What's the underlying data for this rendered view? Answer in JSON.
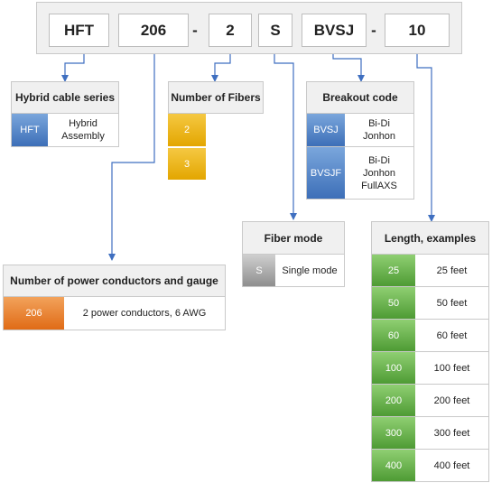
{
  "part_number": {
    "segments": [
      "HFT",
      "206",
      "2",
      "S",
      "BVSJ",
      "10"
    ],
    "dashes": [
      "-",
      "-"
    ]
  },
  "hybrid_series": {
    "title": "Hybrid cable series",
    "rows": [
      {
        "code": "HFT",
        "desc": "Hybrid Assembly"
      }
    ]
  },
  "fibers": {
    "title": "Number of Fibers",
    "rows": [
      {
        "code": "2"
      },
      {
        "code": "3"
      }
    ]
  },
  "breakout": {
    "title": "Breakout code",
    "rows": [
      {
        "code": "BVSJ",
        "desc_lines": [
          "Bi-Di",
          "Jonhon"
        ]
      },
      {
        "code": "BVSJF",
        "desc_lines": [
          "Bi-Di",
          "Jonhon",
          "FullAXS"
        ]
      }
    ]
  },
  "fiber_mode": {
    "title": "Fiber mode",
    "rows": [
      {
        "code": "S",
        "desc": "Single mode"
      }
    ]
  },
  "power": {
    "title": "Number of power conductors and gauge",
    "rows": [
      {
        "code": "206",
        "desc": "2 power conductors, 6 AWG"
      }
    ]
  },
  "length": {
    "title": "Length, examples",
    "rows": [
      {
        "code": "25",
        "desc": "25 feet"
      },
      {
        "code": "50",
        "desc": "50 feet"
      },
      {
        "code": "60",
        "desc": "60 feet"
      },
      {
        "code": "100",
        "desc": "100 feet"
      },
      {
        "code": "200",
        "desc": "200 feet"
      },
      {
        "code": "300",
        "desc": "300 feet"
      },
      {
        "code": "400",
        "desc": "400 feet"
      }
    ]
  },
  "colors": {
    "connector": "#3f6fc0",
    "hybrid_swatch": "#3d6fb8",
    "fiber_swatch": "#e3a600",
    "breakout_swatch": "#3d6fb8",
    "mode_swatch": "#8e8e8e",
    "power_swatch": "#e06b16",
    "length_swatch": "#4e9b34"
  }
}
